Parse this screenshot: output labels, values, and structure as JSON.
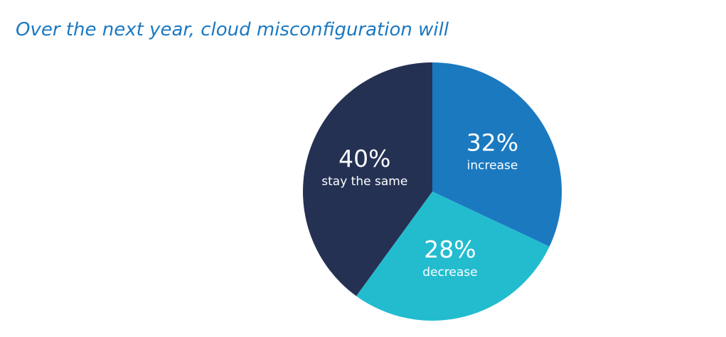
{
  "chart_data": {
    "type": "pie",
    "title": "Over the next year, cloud misconfiguration will",
    "start_angle_deg": 0,
    "direction": "clockwise",
    "slices": [
      {
        "label": "increase",
        "value": 32,
        "value_label": "32%",
        "color": "#1b79c0"
      },
      {
        "label": "decrease",
        "value": 28,
        "value_label": "28%",
        "color": "#23bccf"
      },
      {
        "label": "stay the same",
        "value": 40,
        "value_label": "40%",
        "color": "#243153"
      }
    ],
    "legend": "none"
  },
  "colors": {
    "title": "#1b79c0",
    "label_text": "#ffffff",
    "background": "#ffffff"
  }
}
